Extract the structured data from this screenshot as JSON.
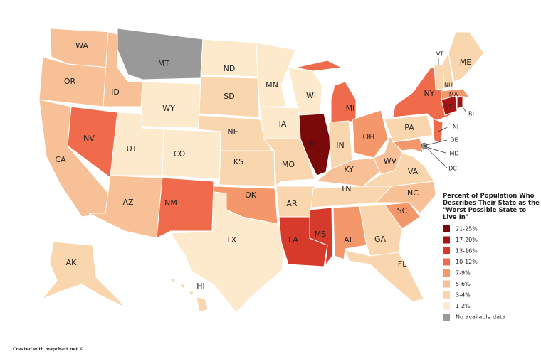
{
  "title": "Percent of Population Who Describes Their State as the \"Worst Possible State to Live In\"",
  "legend": {
    "items": [
      {
        "label": "21-25%",
        "color": "#7a0a0a"
      },
      {
        "label": "17-20%",
        "color": "#a81414"
      },
      {
        "label": "13-16%",
        "color": "#d63a2a"
      },
      {
        "label": "10-12%",
        "color": "#ef6b4b"
      },
      {
        "label": "7-9%",
        "color": "#f4976a"
      },
      {
        "label": "5-6%",
        "color": "#f8c096"
      },
      {
        "label": "3-4%",
        "color": "#fad6ae"
      },
      {
        "label": "1-2%",
        "color": "#fde9cc"
      },
      {
        "label": "No available data",
        "color": "#999999"
      }
    ]
  },
  "states": [
    {
      "label": "WA",
      "color": "#f8c096"
    },
    {
      "label": "OR",
      "color": "#f8c096"
    },
    {
      "label": "CA",
      "color": "#f8c096"
    },
    {
      "label": "ID",
      "color": "#f8c096"
    },
    {
      "label": "NV",
      "color": "#ef6b4b"
    },
    {
      "label": "MT",
      "color": "#999999"
    },
    {
      "label": "WY",
      "color": "#fde9cc"
    },
    {
      "label": "UT",
      "color": "#fde9cc"
    },
    {
      "label": "CO",
      "color": "#fde9cc"
    },
    {
      "label": "AZ",
      "color": "#f8c096"
    },
    {
      "label": "NM",
      "color": "#ef6b4b"
    },
    {
      "label": "ND",
      "color": "#fde9cc"
    },
    {
      "label": "SD",
      "color": "#fad6ae"
    },
    {
      "label": "NE",
      "color": "#fad6ae"
    },
    {
      "label": "KS",
      "color": "#fad6ae"
    },
    {
      "label": "OK",
      "color": "#f4976a"
    },
    {
      "label": "TX",
      "color": "#fde9cc"
    },
    {
      "label": "MN",
      "color": "#fde9cc"
    },
    {
      "label": "IA",
      "color": "#fde9cc"
    },
    {
      "label": "MO",
      "color": "#fad6ae"
    },
    {
      "label": "AR",
      "color": "#fad6ae"
    },
    {
      "label": "LA",
      "color": "#d63a2a"
    },
    {
      "label": "WI",
      "color": "#fde9cc"
    },
    {
      "label": "IL",
      "color": "#7a0a0a"
    },
    {
      "label": "MI",
      "color": "#ef6b4b"
    },
    {
      "label": "IN",
      "color": "#fad6ae"
    },
    {
      "label": "OH",
      "color": "#f4976a"
    },
    {
      "label": "KY",
      "color": "#f8c096"
    },
    {
      "label": "TN",
      "color": "#fad6ae"
    },
    {
      "label": "MS",
      "color": "#d63a2a"
    },
    {
      "label": "AL",
      "color": "#f4976a"
    },
    {
      "label": "GA",
      "color": "#fad6ae"
    },
    {
      "label": "FL",
      "color": "#fad6ae"
    },
    {
      "label": "SC",
      "color": "#f4976a"
    },
    {
      "label": "NC",
      "color": "#f8c096"
    },
    {
      "label": "VA",
      "color": "#fad6ae"
    },
    {
      "label": "WV",
      "color": "#f8c096"
    },
    {
      "label": "MD",
      "color": "#f4976a"
    },
    {
      "label": "DE",
      "color": "#fad6ae"
    },
    {
      "label": "DC",
      "color": "#999999"
    },
    {
      "label": "PA",
      "color": "#fad6ae"
    },
    {
      "label": "NY",
      "color": "#ef6b4b"
    },
    {
      "label": "NJ",
      "color": "#ef6b4b"
    },
    {
      "label": "CT",
      "color": "#a81414"
    },
    {
      "label": "RI",
      "color": "#a81414"
    },
    {
      "label": "MA",
      "color": "#f4976a"
    },
    {
      "label": "VT",
      "color": "#fad6ae"
    },
    {
      "label": "NH",
      "color": "#fad6ae"
    },
    {
      "label": "ME",
      "color": "#fad6ae"
    },
    {
      "label": "AK",
      "color": "#fad6ae"
    },
    {
      "label": "HI",
      "color": "#fad6ae"
    }
  ],
  "credit": "Created with mapchart.net ©"
}
